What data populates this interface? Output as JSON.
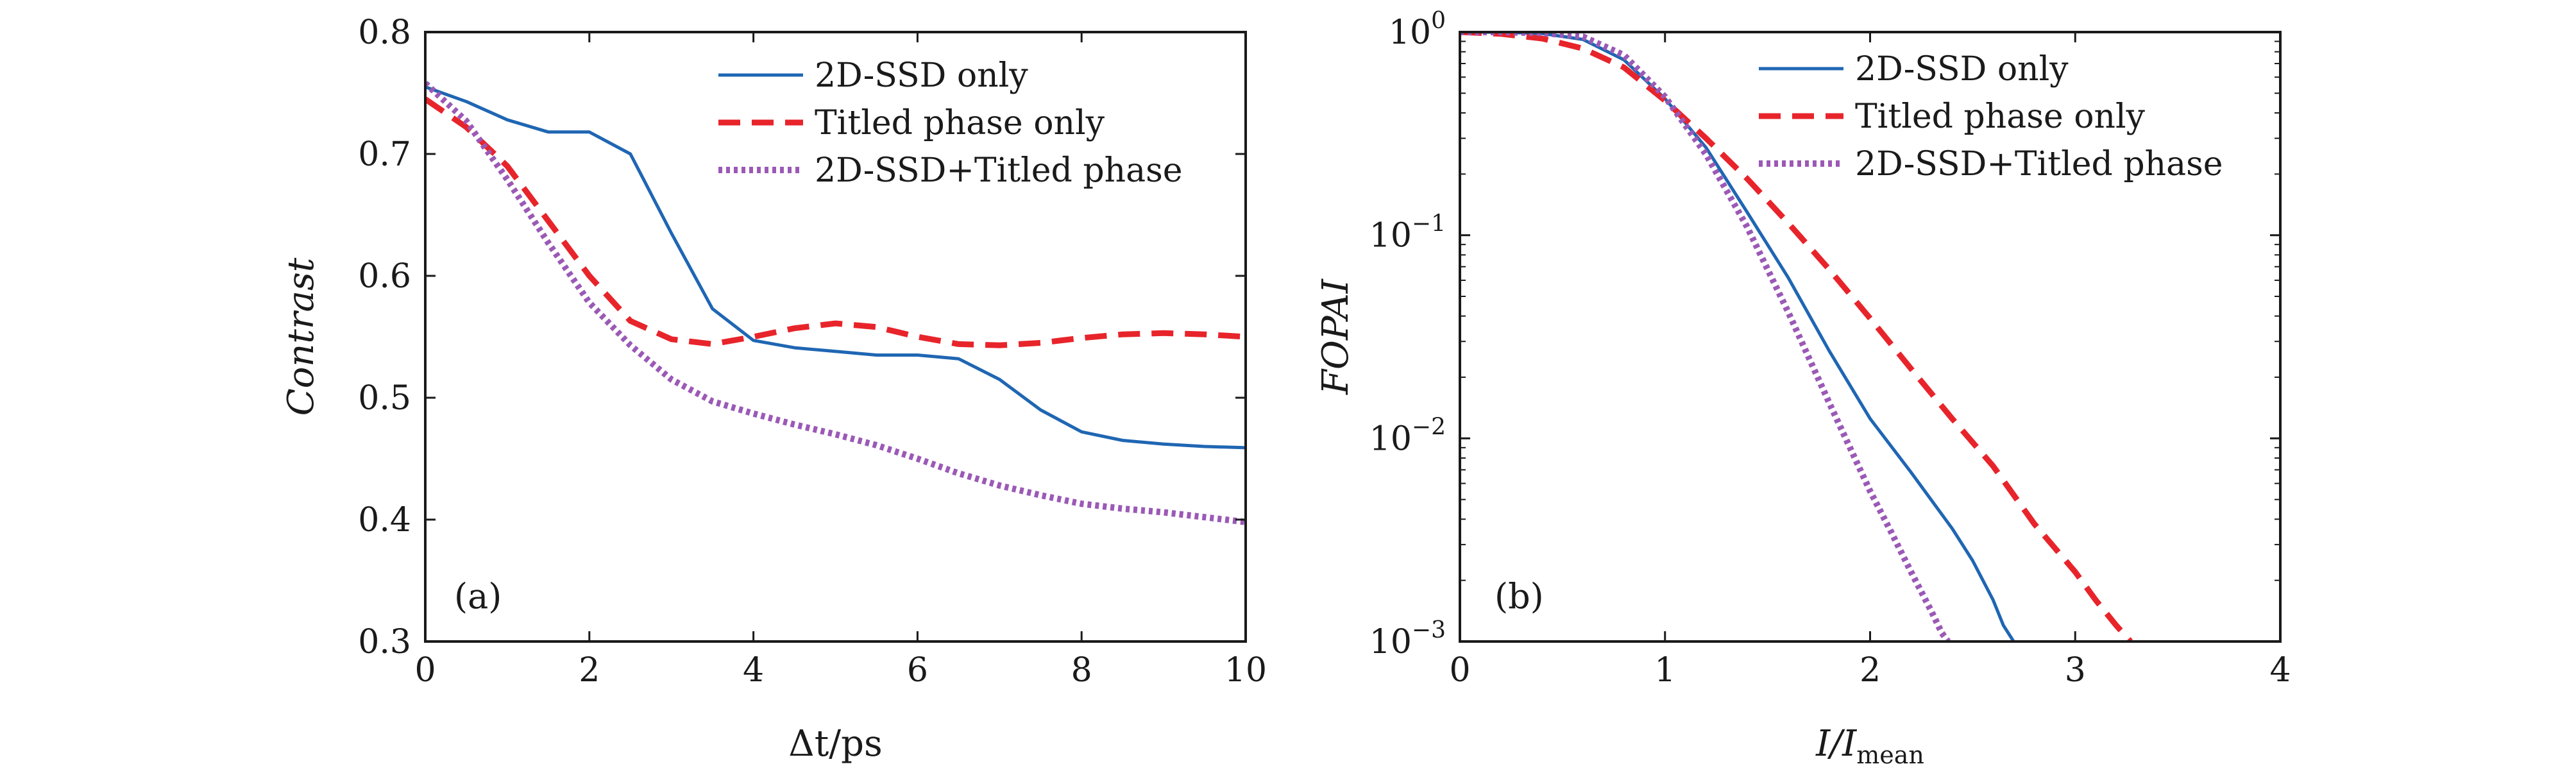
{
  "chart_data": [
    {
      "panel": "(a)",
      "type": "line",
      "xlabel": "Δt/ps",
      "ylabel": "Contrast",
      "xlim": [
        0,
        10
      ],
      "ylim": [
        0.3,
        0.8
      ],
      "xticks": [
        0,
        2,
        4,
        6,
        8,
        10
      ],
      "yticks": [
        0.3,
        0.4,
        0.5,
        0.6,
        0.7,
        0.8
      ],
      "xtick_labels": [
        "0",
        "2",
        "4",
        "6",
        "8",
        "10"
      ],
      "ytick_labels": [
        "0.3",
        "0.4",
        "0.5",
        "0.6",
        "0.7",
        "0.8"
      ],
      "legend_position": "top-right",
      "grid": false,
      "series": [
        {
          "name": "2D-SSD only",
          "color": "#1f66b3",
          "style": "solid",
          "x": [
            0,
            0.5,
            1,
            1.5,
            2,
            2.5,
            3,
            3.5,
            4,
            4.5,
            5,
            5.5,
            6,
            6.5,
            7,
            7.5,
            8,
            8.5,
            9,
            9.5,
            10
          ],
          "y": [
            0.755,
            0.743,
            0.728,
            0.718,
            0.718,
            0.7,
            0.635,
            0.573,
            0.547,
            0.541,
            0.538,
            0.535,
            0.535,
            0.532,
            0.515,
            0.49,
            0.472,
            0.465,
            0.462,
            0.46,
            0.459
          ]
        },
        {
          "name": "Titled phase only",
          "color": "#e8242b",
          "style": "dashed",
          "x": [
            0,
            0.5,
            1,
            1.5,
            2,
            2.5,
            3,
            3.5,
            4,
            4.5,
            5,
            5.5,
            6,
            6.5,
            7,
            7.5,
            8,
            8.5,
            9,
            9.5,
            10
          ],
          "y": [
            0.745,
            0.722,
            0.69,
            0.645,
            0.6,
            0.563,
            0.548,
            0.544,
            0.55,
            0.557,
            0.561,
            0.558,
            0.55,
            0.544,
            0.543,
            0.545,
            0.549,
            0.552,
            0.553,
            0.552,
            0.55
          ]
        },
        {
          "name": "2D-SSD+Titled phase",
          "color": "#9b59b6",
          "style": "dotted",
          "x": [
            0,
            0.5,
            1,
            1.5,
            2,
            2.5,
            3,
            3.5,
            4,
            4.5,
            5,
            5.5,
            6,
            6.5,
            7,
            7.5,
            8,
            8.5,
            9,
            9.5,
            10
          ],
          "y": [
            0.758,
            0.727,
            0.679,
            0.627,
            0.578,
            0.543,
            0.515,
            0.497,
            0.487,
            0.478,
            0.47,
            0.461,
            0.45,
            0.438,
            0.428,
            0.42,
            0.413,
            0.409,
            0.406,
            0.402,
            0.398
          ]
        }
      ]
    },
    {
      "panel": "(b)",
      "type": "line",
      "xlabel": "I/I",
      "xlabel_sub": "mean",
      "ylabel": "FOPAI",
      "xlim": [
        0,
        4
      ],
      "ylim": [
        0.001,
        1
      ],
      "yscale": "log",
      "xticks": [
        0,
        1,
        2,
        3,
        4
      ],
      "yticks": [
        0.001,
        0.01,
        0.1,
        1
      ],
      "xtick_labels": [
        "0",
        "1",
        "2",
        "3",
        "4"
      ],
      "ytick_labels": [
        {
          "base": "10",
          "exp": "−3"
        },
        {
          "base": "10",
          "exp": "−2"
        },
        {
          "base": "10",
          "exp": "−1"
        },
        {
          "base": "10",
          "exp": "0"
        }
      ],
      "legend_position": "top-right",
      "grid": false,
      "series": [
        {
          "name": "2D-SSD only",
          "color": "#1f66b3",
          "style": "solid",
          "x": [
            0,
            0.2,
            0.4,
            0.6,
            0.8,
            1.0,
            1.2,
            1.4,
            1.6,
            1.8,
            2.0,
            2.2,
            2.4,
            2.5,
            2.6,
            2.65,
            2.7
          ],
          "y": [
            1.0,
            0.998,
            0.985,
            0.92,
            0.73,
            0.47,
            0.27,
            0.13,
            0.062,
            0.027,
            0.0125,
            0.0068,
            0.0036,
            0.0025,
            0.0016,
            0.0012,
            0.001
          ]
        },
        {
          "name": "Titled phase only",
          "color": "#e8242b",
          "style": "dashed",
          "x": [
            0,
            0.2,
            0.4,
            0.6,
            0.8,
            1.0,
            1.2,
            1.4,
            1.6,
            1.8,
            2.0,
            2.2,
            2.4,
            2.6,
            2.8,
            3.0,
            3.1,
            3.2,
            3.27
          ],
          "y": [
            1.0,
            0.98,
            0.93,
            0.83,
            0.67,
            0.46,
            0.3,
            0.19,
            0.115,
            0.068,
            0.039,
            0.022,
            0.0125,
            0.0073,
            0.0038,
            0.0022,
            0.0016,
            0.0012,
            0.001
          ]
        },
        {
          "name": "2D-SSD+Titled phase",
          "color": "#9b59b6",
          "style": "dotted",
          "x": [
            0,
            0.2,
            0.4,
            0.6,
            0.8,
            1.0,
            1.2,
            1.4,
            1.6,
            1.8,
            2.0,
            2.1,
            2.2,
            2.3,
            2.35,
            2.38
          ],
          "y": [
            1.0,
            1.0,
            0.99,
            0.95,
            0.77,
            0.48,
            0.25,
            0.11,
            0.042,
            0.015,
            0.0055,
            0.0035,
            0.0022,
            0.0014,
            0.0011,
            0.001
          ]
        }
      ]
    }
  ]
}
